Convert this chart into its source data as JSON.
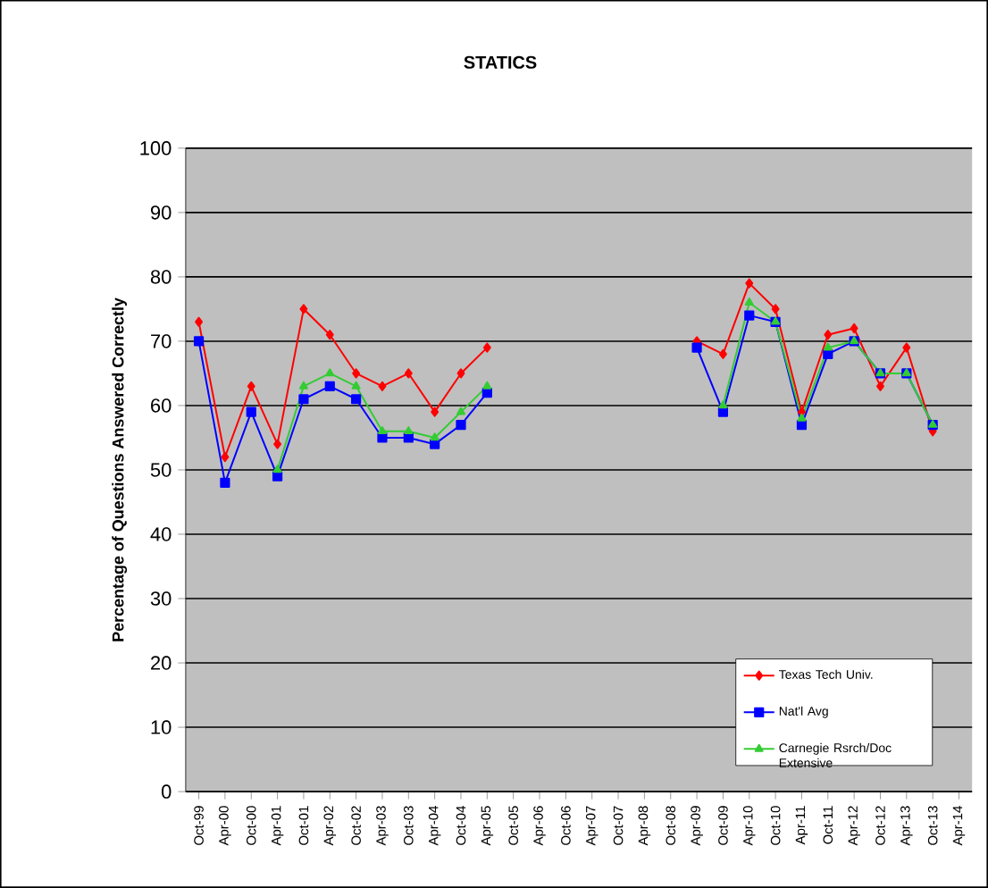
{
  "chart_data": {
    "type": "line",
    "title": "STATICS",
    "ylabel": "Percentage of Questions Answered Correctly",
    "categories": [
      "Oct-99",
      "Apr-00",
      "Oct-00",
      "Apr-01",
      "Oct-01",
      "Apr-02",
      "Oct-02",
      "Apr-03",
      "Oct-03",
      "Apr-04",
      "Oct-04",
      "Apr-05",
      "Oct-05",
      "Apr-06",
      "Oct-06",
      "Apr-07",
      "Oct-07",
      "Apr-08",
      "Oct-08",
      "Apr-09",
      "Oct-09",
      "Apr-10",
      "Oct-10",
      "Apr-11",
      "Oct-11",
      "Apr-12",
      "Oct-12",
      "Apr-13",
      "Oct-13",
      "Apr-14"
    ],
    "series": [
      {
        "name": "Texas Tech Univ.",
        "color": "#ff0000",
        "marker": "diamond",
        "values": [
          73,
          52,
          63,
          54,
          75,
          71,
          65,
          63,
          65,
          59,
          65,
          69,
          null,
          null,
          null,
          null,
          null,
          null,
          null,
          70,
          68,
          79,
          75,
          59,
          71,
          72,
          63,
          69,
          56,
          null
        ]
      },
      {
        "name": "Nat'l Avg",
        "color": "#0000ff",
        "marker": "square",
        "values": [
          70,
          48,
          59,
          49,
          61,
          63,
          61,
          55,
          55,
          54,
          57,
          62,
          null,
          null,
          null,
          null,
          null,
          null,
          null,
          69,
          59,
          74,
          73,
          57,
          68,
          70,
          65,
          65,
          57,
          null
        ]
      },
      {
        "name": "Carnegie Rsrch/Doc Extensive",
        "color": "#33cc33",
        "marker": "triangle",
        "values": [
          null,
          null,
          null,
          50,
          63,
          65,
          63,
          56,
          56,
          55,
          59,
          63,
          null,
          null,
          null,
          null,
          null,
          null,
          null,
          null,
          60,
          76,
          73,
          58,
          69,
          70,
          65,
          65,
          57,
          null
        ]
      }
    ],
    "ylim": [
      0,
      100
    ],
    "yticks": [
      0,
      10,
      20,
      30,
      40,
      50,
      60,
      70,
      80,
      90,
      100
    ],
    "grid": "y",
    "legend": "bottom right",
    "line_style": "solid"
  }
}
